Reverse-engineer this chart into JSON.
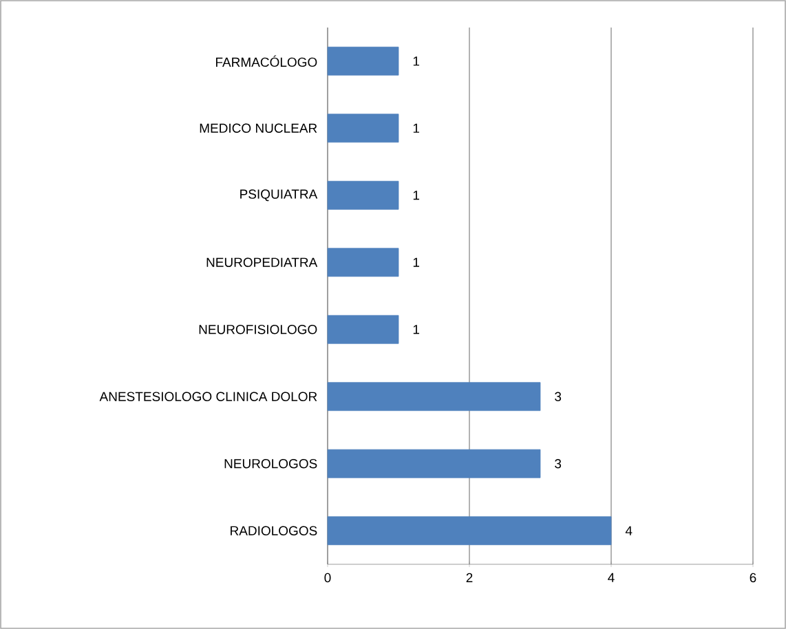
{
  "chart_data": {
    "type": "bar",
    "orientation": "horizontal",
    "categories": [
      "FARMACÓLOGO",
      "MEDICO NUCLEAR",
      "PSIQUIATRA",
      "NEUROPEDIATRA",
      "NEUROFISIOLOGO",
      "ANESTESIOLOGO CLINICA DOLOR",
      "NEUROLOGOS",
      "RADIOLOGOS"
    ],
    "values": [
      1,
      1,
      1,
      1,
      1,
      3,
      3,
      4
    ],
    "color": "#4f81bd",
    "xlim": [
      0,
      6
    ],
    "xticks": [
      0,
      2,
      4,
      6
    ],
    "grid": "x",
    "data_labels": true
  }
}
